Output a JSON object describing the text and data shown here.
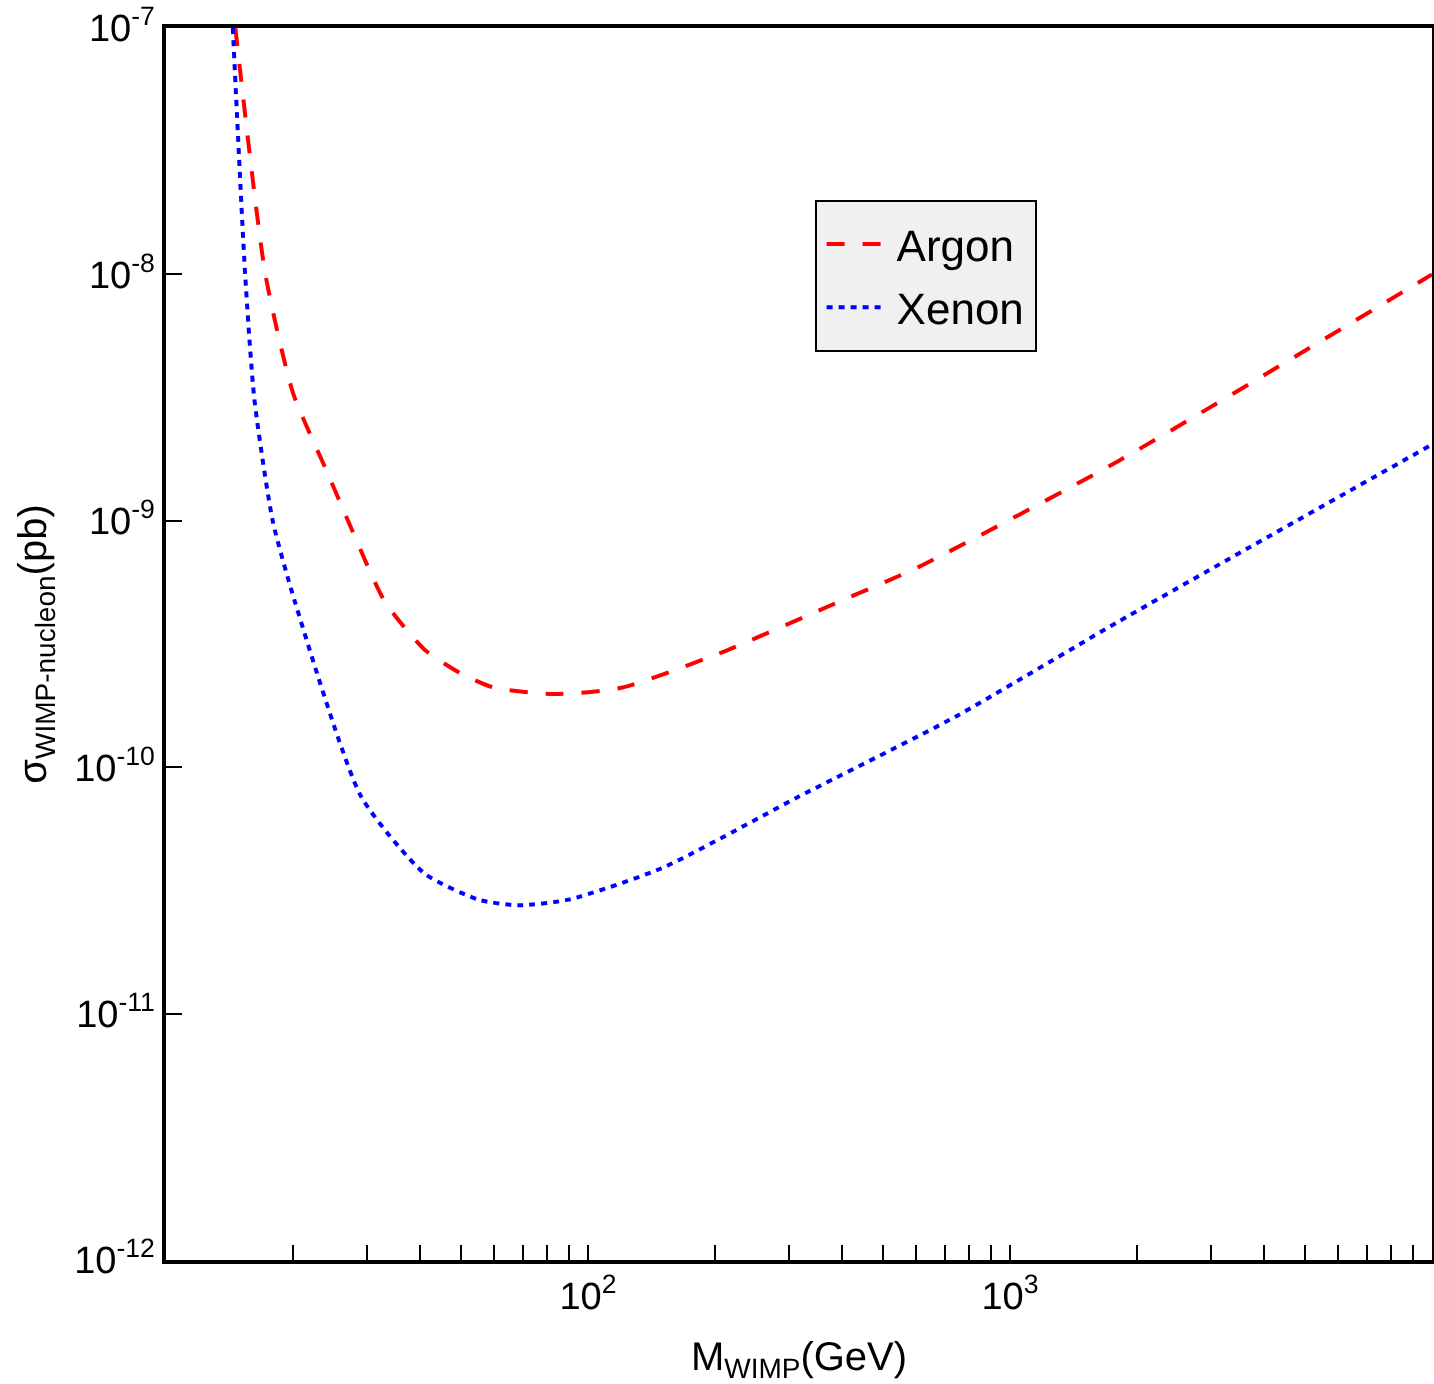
{
  "chart_data": {
    "type": "line",
    "xlabel": "M$_{WIMP}$(GeV)",
    "ylabel": "σ$_{WIMP-nucleon}$(pb)",
    "log": "xy",
    "grid": false,
    "legend": "top",
    "marker": "none",
    "xlim": [
      10,
      10000
    ],
    "ylim": [
      1e-12,
      1e-07
    ],
    "xticks": [
      {
        "value": 20,
        "label": null
      },
      {
        "value": 30,
        "label": null
      },
      {
        "value": 40,
        "label": null
      },
      {
        "value": 50,
        "label": null
      },
      {
        "value": 60,
        "label": null
      },
      {
        "value": 70,
        "label": null
      },
      {
        "value": 80,
        "label": null
      },
      {
        "value": 90,
        "label": null
      },
      {
        "value": 100,
        "label": "10$^{2}$"
      },
      {
        "value": 200,
        "label": null
      },
      {
        "value": 300,
        "label": null
      },
      {
        "value": 400,
        "label": null
      },
      {
        "value": 500,
        "label": null
      },
      {
        "value": 600,
        "label": null
      },
      {
        "value": 700,
        "label": null
      },
      {
        "value": 800,
        "label": null
      },
      {
        "value": 900,
        "label": null
      },
      {
        "value": 1000,
        "label": "10$^{3}$"
      },
      {
        "value": 2000,
        "label": null
      },
      {
        "value": 3000,
        "label": null
      },
      {
        "value": 4000,
        "label": null
      },
      {
        "value": 5000,
        "label": null
      },
      {
        "value": 6000,
        "label": null
      },
      {
        "value": 7000,
        "label": null
      },
      {
        "value": 8000,
        "label": null
      },
      {
        "value": 9000,
        "label": null
      }
    ],
    "yticks": [
      {
        "value": 1e-12,
        "label": "10$^{-12}$"
      },
      {
        "value": 1e-11,
        "label": "10$^{-11}$"
      },
      {
        "value": 1e-10,
        "label": "10$^{-10}$"
      },
      {
        "value": 1e-09,
        "label": "10$^{-9}$"
      },
      {
        "value": 1e-08,
        "label": "10$^{-8}$"
      },
      {
        "value": 1e-07,
        "label": "10$^{-7}$"
      }
    ],
    "series": [
      {
        "name": "Argon",
        "color": "#ff0000",
        "line_style": "dashed",
        "x": [
          14.6,
          17.2,
          20,
          24,
          27,
          33,
          41,
          50,
          60,
          83,
          120,
          205,
          394,
          608,
          1808,
          10000
        ],
        "values": [
          1e-07,
          1e-08,
          3.3e-09,
          1.6e-09,
          1e-09,
          4.7e-10,
          3e-10,
          2.4e-10,
          2.1e-10,
          1.98e-10,
          2.1e-10,
          2.9e-10,
          4.7e-10,
          6.5e-10,
          1.75e-09,
          1e-08
        ]
      },
      {
        "name": "Xenon",
        "color": "#0000ff",
        "line_style": "dotted",
        "x": [
          14.4,
          15.4,
          16.2,
          17.9,
          20.2,
          29,
          41,
          55,
          68.5,
          90,
          150,
          316,
          741,
          1808,
          10000
        ],
        "values": [
          1e-07,
          1e-08,
          3.1e-09,
          1e-09,
          4.7e-10,
          7.6e-11,
          3.7e-11,
          2.9e-11,
          2.75e-11,
          2.9e-11,
          3.9e-11,
          7.6e-11,
          1.6e-10,
          3.9e-10,
          2.04e-09
        ]
      }
    ]
  }
}
